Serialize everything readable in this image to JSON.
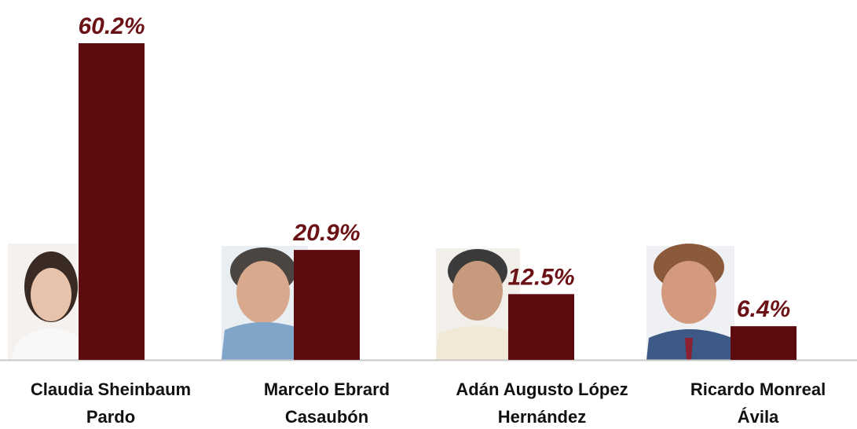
{
  "chart_data": {
    "type": "bar",
    "categories": [
      "Claudia Sheinbaum\nPardo",
      "Marcelo Ebrard\nCasaubón",
      "Adán Augusto López\nHernández",
      "Ricardo Monreal\nÁvila"
    ],
    "values": [
      60.2,
      20.9,
      12.5,
      6.4
    ],
    "value_labels": [
      "60.2%",
      "20.9%",
      "12.5%",
      "6.4%"
    ],
    "color": "#5e0b10"
  }
}
